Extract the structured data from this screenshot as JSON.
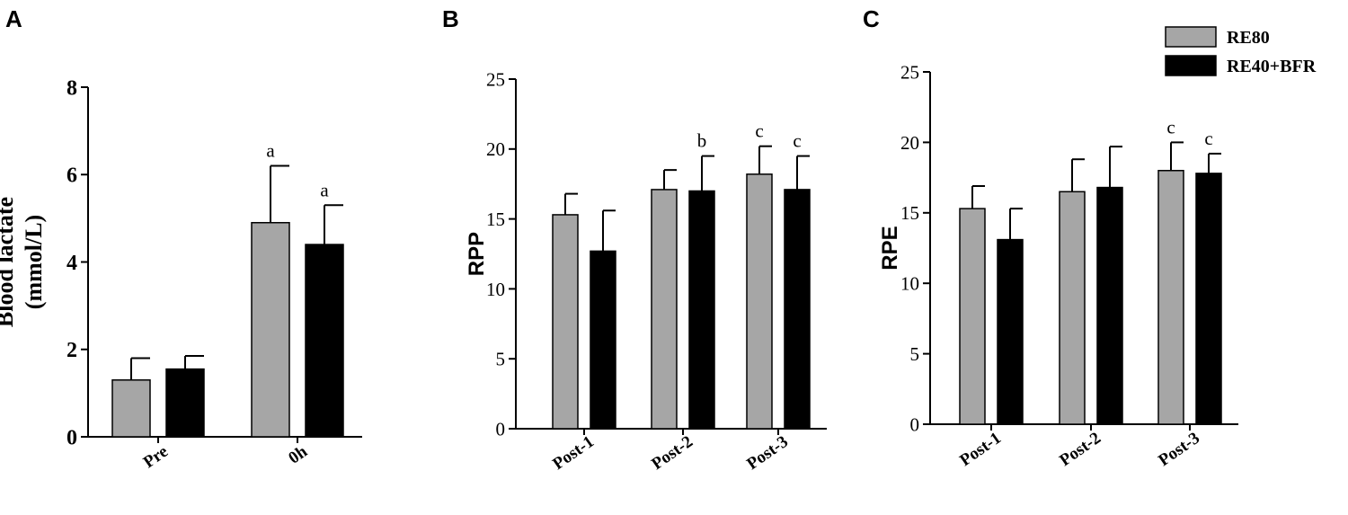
{
  "legend": {
    "items": [
      {
        "name": "RE80",
        "color": "#a6a6a6"
      },
      {
        "name": "RE40+BFR",
        "color": "#000000"
      }
    ]
  },
  "chart_data": [
    {
      "panel": "A",
      "type": "bar",
      "ylabel_lines": [
        "Blood lactate",
        "(mmol/L)"
      ],
      "ylim": [
        0,
        8
      ],
      "yticks": [
        0,
        2,
        4,
        6,
        8
      ],
      "categories": [
        "Pre",
        "0h"
      ],
      "series": [
        {
          "name": "RE80",
          "color": "#a6a6a6",
          "values": [
            1.3,
            4.9
          ],
          "errors": [
            0.5,
            1.3
          ],
          "annotations": [
            "",
            "a"
          ]
        },
        {
          "name": "RE40+BFR",
          "color": "#000000",
          "values": [
            1.55,
            4.4
          ],
          "errors": [
            0.3,
            0.9
          ],
          "annotations": [
            "",
            "a"
          ]
        }
      ]
    },
    {
      "panel": "B",
      "type": "bar",
      "ylabel_lines": [
        "RPP"
      ],
      "ylim": [
        0,
        25
      ],
      "yticks": [
        0,
        5,
        10,
        15,
        20,
        25
      ],
      "categories": [
        "Post-1",
        "Post-2",
        "Post-3"
      ],
      "series": [
        {
          "name": "RE80",
          "color": "#a6a6a6",
          "values": [
            15.3,
            17.1,
            18.2
          ],
          "errors": [
            1.5,
            1.4,
            2.0
          ],
          "annotations": [
            "",
            "",
            "c"
          ]
        },
        {
          "name": "RE40+BFR",
          "color": "#000000",
          "values": [
            12.7,
            17.0,
            17.1
          ],
          "errors": [
            2.9,
            2.5,
            2.4
          ],
          "annotations": [
            "",
            "b",
            "c"
          ]
        }
      ]
    },
    {
      "panel": "C",
      "type": "bar",
      "ylabel_lines": [
        "RPE"
      ],
      "ylim": [
        0,
        25
      ],
      "yticks": [
        0,
        5,
        10,
        15,
        20,
        25
      ],
      "categories": [
        "Post-1",
        "Post-2",
        "Post-3"
      ],
      "series": [
        {
          "name": "RE80",
          "color": "#a6a6a6",
          "values": [
            15.3,
            16.5,
            18.0
          ],
          "errors": [
            1.6,
            2.3,
            2.0
          ],
          "annotations": [
            "",
            "",
            "c"
          ]
        },
        {
          "name": "RE40+BFR",
          "color": "#000000",
          "values": [
            13.1,
            16.8,
            17.8
          ],
          "errors": [
            2.2,
            2.9,
            1.4
          ],
          "annotations": [
            "",
            "",
            "c"
          ]
        }
      ]
    }
  ]
}
